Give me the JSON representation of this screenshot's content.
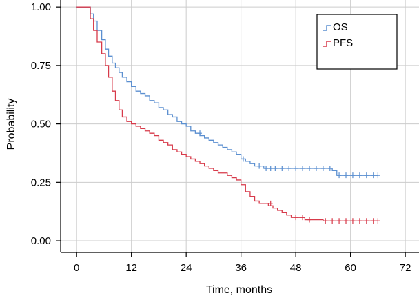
{
  "chart_data": {
    "type": "line",
    "title": "",
    "xlabel": "Time, months",
    "ylabel": "Probability",
    "xlim": [
      -3.5,
      75
    ],
    "ylim": [
      -0.05,
      1.03
    ],
    "x_ticks": [
      0,
      12,
      24,
      36,
      48,
      60,
      72
    ],
    "y_ticks": [
      0.0,
      0.25,
      0.5,
      0.75,
      1.0
    ],
    "x_tick_labels": [
      "0",
      "12",
      "24",
      "36",
      "48",
      "60",
      "72"
    ],
    "y_tick_labels": [
      "0.00",
      "0.25",
      "0.50",
      "0.75",
      "1.00"
    ],
    "grid": true,
    "legend_position": "top-right",
    "series": [
      {
        "name": "OS",
        "color": "#5b8fd0",
        "x": [
          0,
          3,
          3.7,
          4.5,
          5.5,
          6.3,
          7,
          7.8,
          8.5,
          9.3,
          10,
          11,
          12,
          13,
          14,
          15,
          16,
          17,
          18,
          19,
          20,
          21,
          22,
          23,
          24,
          25,
          26,
          27,
          28,
          29,
          30,
          31,
          32,
          33,
          34,
          35,
          36,
          37,
          38,
          39,
          40,
          41,
          42,
          43,
          44,
          45,
          46,
          47,
          48,
          49,
          50,
          51,
          52,
          53,
          54,
          55,
          56,
          57,
          58,
          59,
          60,
          61,
          62,
          63,
          64,
          65,
          66
        ],
        "y": [
          1.0,
          0.97,
          0.94,
          0.9,
          0.86,
          0.82,
          0.79,
          0.76,
          0.74,
          0.72,
          0.7,
          0.68,
          0.66,
          0.64,
          0.63,
          0.62,
          0.6,
          0.59,
          0.57,
          0.56,
          0.54,
          0.53,
          0.51,
          0.5,
          0.49,
          0.47,
          0.46,
          0.45,
          0.44,
          0.43,
          0.42,
          0.41,
          0.4,
          0.39,
          0.38,
          0.37,
          0.35,
          0.34,
          0.33,
          0.32,
          0.32,
          0.31,
          0.31,
          0.31,
          0.31,
          0.31,
          0.31,
          0.31,
          0.31,
          0.31,
          0.31,
          0.31,
          0.31,
          0.31,
          0.31,
          0.31,
          0.3,
          0.28,
          0.28,
          0.28,
          0.28,
          0.28,
          0.28,
          0.28,
          0.28,
          0.28,
          0.28
        ],
        "censored": [
          [
            27,
            0.46
          ],
          [
            36.5,
            0.35
          ],
          [
            40,
            0.32
          ],
          [
            41.5,
            0.31
          ],
          [
            42.5,
            0.31
          ],
          [
            43.5,
            0.31
          ],
          [
            45,
            0.31
          ],
          [
            46.5,
            0.31
          ],
          [
            48,
            0.31
          ],
          [
            49.5,
            0.31
          ],
          [
            51,
            0.31
          ],
          [
            52.5,
            0.31
          ],
          [
            54,
            0.31
          ],
          [
            55.5,
            0.31
          ],
          [
            57.5,
            0.28
          ],
          [
            59,
            0.28
          ],
          [
            60.5,
            0.28
          ],
          [
            62,
            0.28
          ],
          [
            63.5,
            0.28
          ],
          [
            65,
            0.28
          ],
          [
            66,
            0.28
          ]
        ]
      },
      {
        "name": "PFS",
        "color": "#d73a4a",
        "x": [
          0,
          3,
          3.7,
          4.5,
          5.5,
          6.3,
          7,
          7.8,
          8.5,
          9.3,
          10,
          11,
          12,
          13,
          14,
          15,
          16,
          17,
          18,
          19,
          20,
          21,
          22,
          23,
          24,
          25,
          26,
          27,
          28,
          29,
          30,
          31,
          32,
          33,
          34,
          35,
          36,
          37,
          38,
          39,
          40,
          41,
          42,
          43,
          44,
          45,
          46,
          47,
          48,
          49,
          50,
          51,
          52,
          53,
          54,
          55,
          56,
          57,
          58,
          59,
          60,
          61,
          62,
          63,
          64,
          65,
          66
        ],
        "y": [
          1.0,
          0.95,
          0.9,
          0.85,
          0.8,
          0.75,
          0.7,
          0.64,
          0.6,
          0.56,
          0.53,
          0.51,
          0.5,
          0.49,
          0.48,
          0.47,
          0.46,
          0.45,
          0.43,
          0.42,
          0.41,
          0.39,
          0.38,
          0.37,
          0.36,
          0.35,
          0.34,
          0.33,
          0.32,
          0.31,
          0.3,
          0.29,
          0.29,
          0.28,
          0.27,
          0.26,
          0.24,
          0.21,
          0.19,
          0.17,
          0.16,
          0.16,
          0.15,
          0.14,
          0.13,
          0.12,
          0.11,
          0.1,
          0.1,
          0.1,
          0.09,
          0.09,
          0.09,
          0.09,
          0.085,
          0.085,
          0.085,
          0.085,
          0.085,
          0.085,
          0.085,
          0.085,
          0.085,
          0.085,
          0.085,
          0.085,
          0.085
        ],
        "censored": [
          [
            42.5,
            0.16
          ],
          [
            48,
            0.1
          ],
          [
            49.5,
            0.1
          ],
          [
            51,
            0.09
          ],
          [
            54.5,
            0.085
          ],
          [
            56,
            0.085
          ],
          [
            57.5,
            0.085
          ],
          [
            59,
            0.085
          ],
          [
            60.5,
            0.085
          ],
          [
            62,
            0.085
          ],
          [
            63.5,
            0.085
          ],
          [
            65,
            0.085
          ],
          [
            66,
            0.085
          ]
        ]
      }
    ]
  }
}
